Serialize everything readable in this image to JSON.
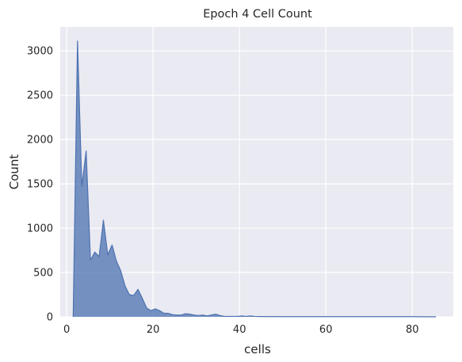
{
  "chart_data": {
    "type": "area",
    "title": "Epoch 4 Cell Count",
    "xlabel": "cells",
    "ylabel": "Count",
    "xlim": [
      -1.5,
      89.5
    ],
    "ylim": [
      0,
      3270
    ],
    "x_ticks": [
      0,
      20,
      40,
      60,
      80
    ],
    "y_ticks": [
      0,
      500,
      1000,
      1500,
      2000,
      2500,
      3000
    ],
    "grid": true,
    "background": "#eaeaf2",
    "grid_color": "#ffffff",
    "fill_color": "#4c72b0",
    "fill_opacity": 0.75,
    "x": [
      1.5,
      2.5,
      3.5,
      4.5,
      5.5,
      6.5,
      7.5,
      8.5,
      9.5,
      10.5,
      11.5,
      12.5,
      13.5,
      14.5,
      15.5,
      16.5,
      17.5,
      18.5,
      19.5,
      20.5,
      21.5,
      22.5,
      23.5,
      24.5,
      25.5,
      26.5,
      27.5,
      28.5,
      29.5,
      30.5,
      31.5,
      32.5,
      33.5,
      34.5,
      35.5,
      36.5,
      37.5,
      38.5,
      39.5,
      40.5,
      41.5,
      42.5,
      43.5,
      44.5,
      45.5,
      50,
      55,
      60,
      65,
      70,
      75,
      80,
      85.5
    ],
    "values": [
      0,
      3110,
      1470,
      1870,
      640,
      730,
      680,
      1090,
      700,
      810,
      630,
      520,
      350,
      250,
      240,
      310,
      210,
      100,
      70,
      90,
      70,
      40,
      40,
      25,
      20,
      20,
      35,
      30,
      20,
      15,
      20,
      10,
      20,
      30,
      15,
      5,
      5,
      5,
      5,
      10,
      5,
      10,
      5,
      3,
      3,
      2,
      2,
      2,
      2,
      2,
      2,
      2,
      0
    ]
  }
}
